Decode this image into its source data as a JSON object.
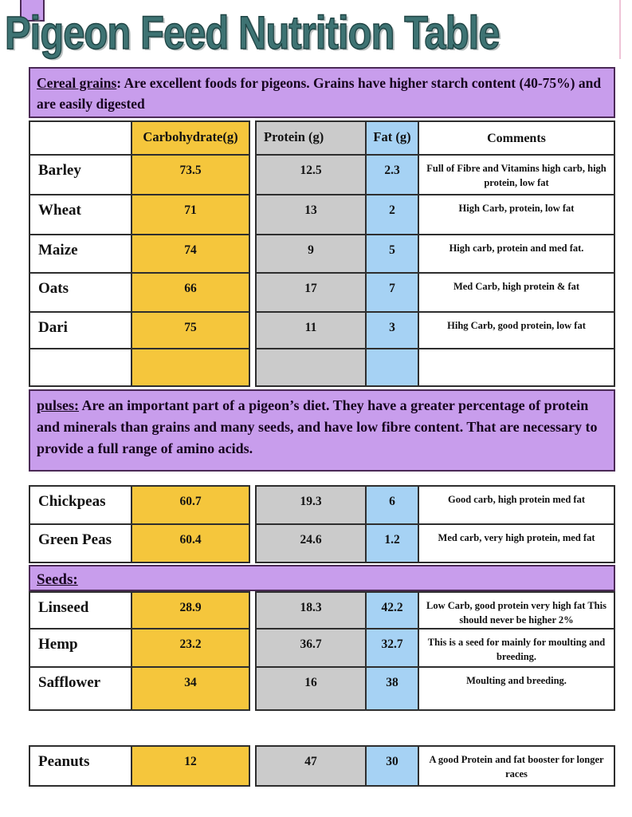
{
  "title": "Pigeon Feed Nutrition Table",
  "banners": {
    "cereal": {
      "lead": "Cereal grains",
      "rest": ": Are excellent foods for pigeons. Grains have higher starch content (40-75%) and are easily digested"
    },
    "pulses": {
      "lead": "pulses:",
      "rest": " Are an important part of a pigeon’s diet. They have a greater percentage of protein and minerals than grains and many seeds, and have low fibre content. That are necessary to provide a full range of amino acids."
    },
    "seeds": {
      "lead": "Seeds:",
      "rest": ""
    }
  },
  "headers": {
    "name": "",
    "carb": "Carbohydrate(g)",
    "protein": "Protein (g)",
    "fat": "Fat (g)",
    "comments": "Comments"
  },
  "rows": {
    "barley": {
      "name": "Barley",
      "carb": "73.5",
      "protein": "12.5",
      "fat": "2.3",
      "comments": "Full of Fibre and Vitamins high carb, high protein, low fat"
    },
    "wheat": {
      "name": "Wheat",
      "carb": "71",
      "protein": "13",
      "fat": "2",
      "comments": "High Carb, protein, low fat"
    },
    "maize": {
      "name": "Maize",
      "carb": "74",
      "protein": "9",
      "fat": "5",
      "comments": "High carb, protein and med fat."
    },
    "oats": {
      "name": "Oats",
      "carb": "66",
      "protein": "17",
      "fat": "7",
      "comments": "Med Carb, high protein & fat"
    },
    "dari": {
      "name": "Dari",
      "carb": "75",
      "protein": "11",
      "fat": "3",
      "comments": "Hihg Carb, good protein, low fat"
    },
    "empty": {
      "name": "",
      "carb": "",
      "protein": "",
      "fat": "",
      "comments": ""
    },
    "chickpeas": {
      "name": "Chickpeas",
      "carb": "60.7",
      "protein": "19.3",
      "fat": "6",
      "comments": "Good carb, high protein med fat"
    },
    "greenpeas": {
      "name": "Green Peas",
      "carb": "60.4",
      "protein": "24.6",
      "fat": "1.2",
      "comments": "Med carb, very high protein, med fat"
    },
    "linseed": {
      "name": "Linseed",
      "carb": "28.9",
      "protein": "18.3",
      "fat": "42.2",
      "comments": "Low Carb, good protein very high fat This should never be higher 2%"
    },
    "hemp": {
      "name": "Hemp",
      "carb": "23.2",
      "protein": "36.7",
      "fat": "32.7",
      "comments": "This is a seed for mainly for moulting and breeding."
    },
    "safflower": {
      "name": "Safflower",
      "carb": "34",
      "protein": "16",
      "fat": "38",
      "comments": "Moulting and breeding."
    },
    "peanuts": {
      "name": "Peanuts",
      "carb": "12",
      "protein": "47",
      "fat": "30",
      "comments": "A good Protein and fat booster for longer races"
    }
  },
  "colors": {
    "carbohydrate_column": "#F5C63C",
    "protein_column": "#CBCBCB",
    "fat_column": "#A6D2F4",
    "banner_background": "#C89DEC",
    "title_text": "#3E7373"
  }
}
